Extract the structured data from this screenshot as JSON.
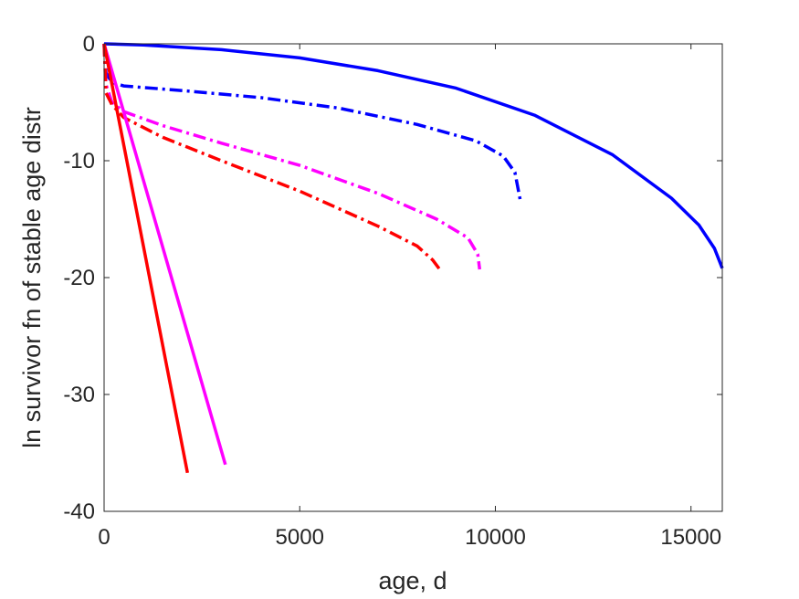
{
  "chart_data": {
    "type": "line",
    "title": "",
    "xlabel": "age, d",
    "ylabel": "ln survivor fn of stable age distr",
    "xlim": [
      0,
      15800
    ],
    "ylim": [
      -40,
      0
    ],
    "xticks": [
      0,
      5000,
      10000,
      15000
    ],
    "xtick_labels": [
      "0",
      "5000",
      "10000",
      "15000"
    ],
    "yticks": [
      0,
      -10,
      -20,
      -30,
      -40
    ],
    "ytick_labels": [
      "0",
      "-10",
      "-20",
      "-30",
      "-40"
    ],
    "grid": false,
    "legend": "none",
    "series": [
      {
        "color": "#0000FF",
        "dash": "solid",
        "x": [
          0,
          1000,
          3000,
          5000,
          7000,
          9000,
          11000,
          13000,
          14500,
          15200,
          15600,
          15800
        ],
        "y": [
          0,
          -0.1,
          -0.5,
          -1.2,
          -2.3,
          -3.8,
          -6.1,
          -9.5,
          -13.2,
          -15.5,
          -17.5,
          -19.2
        ]
      },
      {
        "color": "#0000FF",
        "dash": "dashdot",
        "x": [
          0,
          50,
          200,
          500,
          2000,
          4000,
          6000,
          8000,
          9500,
          10200,
          10500,
          10650
        ],
        "y": [
          0,
          -2.5,
          -3.3,
          -3.6,
          -4.0,
          -4.6,
          -5.5,
          -6.9,
          -8.3,
          -9.6,
          -11.0,
          -13.6
        ]
      },
      {
        "color": "#FF00FF",
        "dash": "dashdot",
        "x": [
          0,
          50,
          200,
          500,
          1500,
          3000,
          5000,
          7000,
          8500,
          9300,
          9550,
          9600
        ],
        "y": [
          0,
          -3.5,
          -5.0,
          -5.8,
          -7.0,
          -8.5,
          -10.4,
          -12.8,
          -15.0,
          -16.6,
          -18.0,
          -19.3
        ]
      },
      {
        "color": "#FF0000",
        "dash": "dashdot",
        "x": [
          0,
          50,
          200,
          500,
          1500,
          3000,
          5000,
          7000,
          8000,
          8400,
          8600
        ],
        "y": [
          0,
          -4.2,
          -5.2,
          -6.3,
          -8.0,
          -10.0,
          -12.6,
          -15.6,
          -17.3,
          -18.5,
          -19.4
        ]
      },
      {
        "color": "#FF00FF",
        "dash": "solid",
        "x": [
          0,
          3100
        ],
        "y": [
          0,
          -36.0
        ]
      },
      {
        "color": "#FF0000",
        "dash": "solid",
        "x": [
          0,
          2130
        ],
        "y": [
          0,
          -36.7
        ]
      }
    ]
  }
}
